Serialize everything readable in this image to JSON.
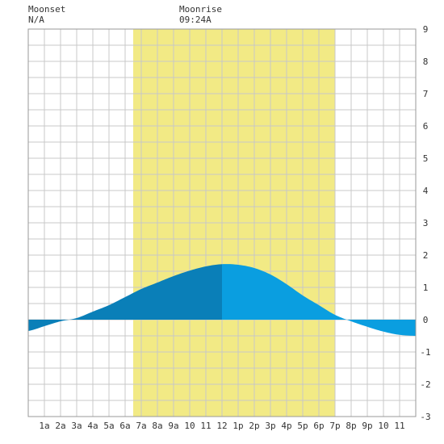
{
  "header": {
    "moonset_label": "Moonset",
    "moonset_value": "N/A",
    "moonrise_label": "Moonrise",
    "moonrise_value": "09:24A"
  },
  "colors": {
    "daylight": "#f2ea85",
    "rising_fill": "#0a7fb8",
    "falling_fill": "#0a9ee0",
    "grid": "#c8c8c8",
    "border": "#999999",
    "text": "#333333"
  },
  "chart_data": {
    "type": "area",
    "title": "",
    "xlabel": "",
    "ylabel": "",
    "xlim": [
      0,
      24
    ],
    "ylim": [
      -3,
      9
    ],
    "grid": true,
    "daylight_hours": [
      6.5,
      19.0
    ],
    "x_tick_labels": [
      {
        "x": 1,
        "label": "1a"
      },
      {
        "x": 2,
        "label": "2a"
      },
      {
        "x": 3,
        "label": "3a"
      },
      {
        "x": 4,
        "label": "4a"
      },
      {
        "x": 5,
        "label": "5a"
      },
      {
        "x": 6,
        "label": "6a"
      },
      {
        "x": 7,
        "label": "7a"
      },
      {
        "x": 8,
        "label": "8a"
      },
      {
        "x": 9,
        "label": "9a"
      },
      {
        "x": 10,
        "label": "10"
      },
      {
        "x": 11,
        "label": "11"
      },
      {
        "x": 12,
        "label": "12"
      },
      {
        "x": 13,
        "label": "1p"
      },
      {
        "x": 14,
        "label": "2p"
      },
      {
        "x": 15,
        "label": "3p"
      },
      {
        "x": 16,
        "label": "4p"
      },
      {
        "x": 17,
        "label": "5p"
      },
      {
        "x": 18,
        "label": "6p"
      },
      {
        "x": 19,
        "label": "7p"
      },
      {
        "x": 20,
        "label": "8p"
      },
      {
        "x": 21,
        "label": "9p"
      },
      {
        "x": 22,
        "label": "10"
      },
      {
        "x": 23,
        "label": "11"
      }
    ],
    "y_tick_labels": [
      "-3",
      "-2",
      "-1",
      "0",
      "1",
      "2",
      "3",
      "4",
      "5",
      "6",
      "7",
      "8",
      "9"
    ],
    "series": [
      {
        "x": [
          0,
          1,
          2,
          3,
          4,
          5,
          6,
          7,
          8,
          9,
          10,
          11,
          12,
          13,
          14,
          15,
          16,
          17,
          18,
          19,
          20,
          21,
          22,
          23,
          24
        ],
        "y": [
          -0.35,
          -0.2,
          -0.05,
          0.05,
          0.25,
          0.45,
          0.7,
          0.95,
          1.15,
          1.35,
          1.52,
          1.65,
          1.72,
          1.7,
          1.6,
          1.4,
          1.1,
          0.75,
          0.45,
          0.15,
          -0.05,
          -0.22,
          -0.37,
          -0.47,
          -0.5
        ]
      }
    ],
    "high_tide": {
      "x": 12,
      "y": 1.72
    }
  }
}
